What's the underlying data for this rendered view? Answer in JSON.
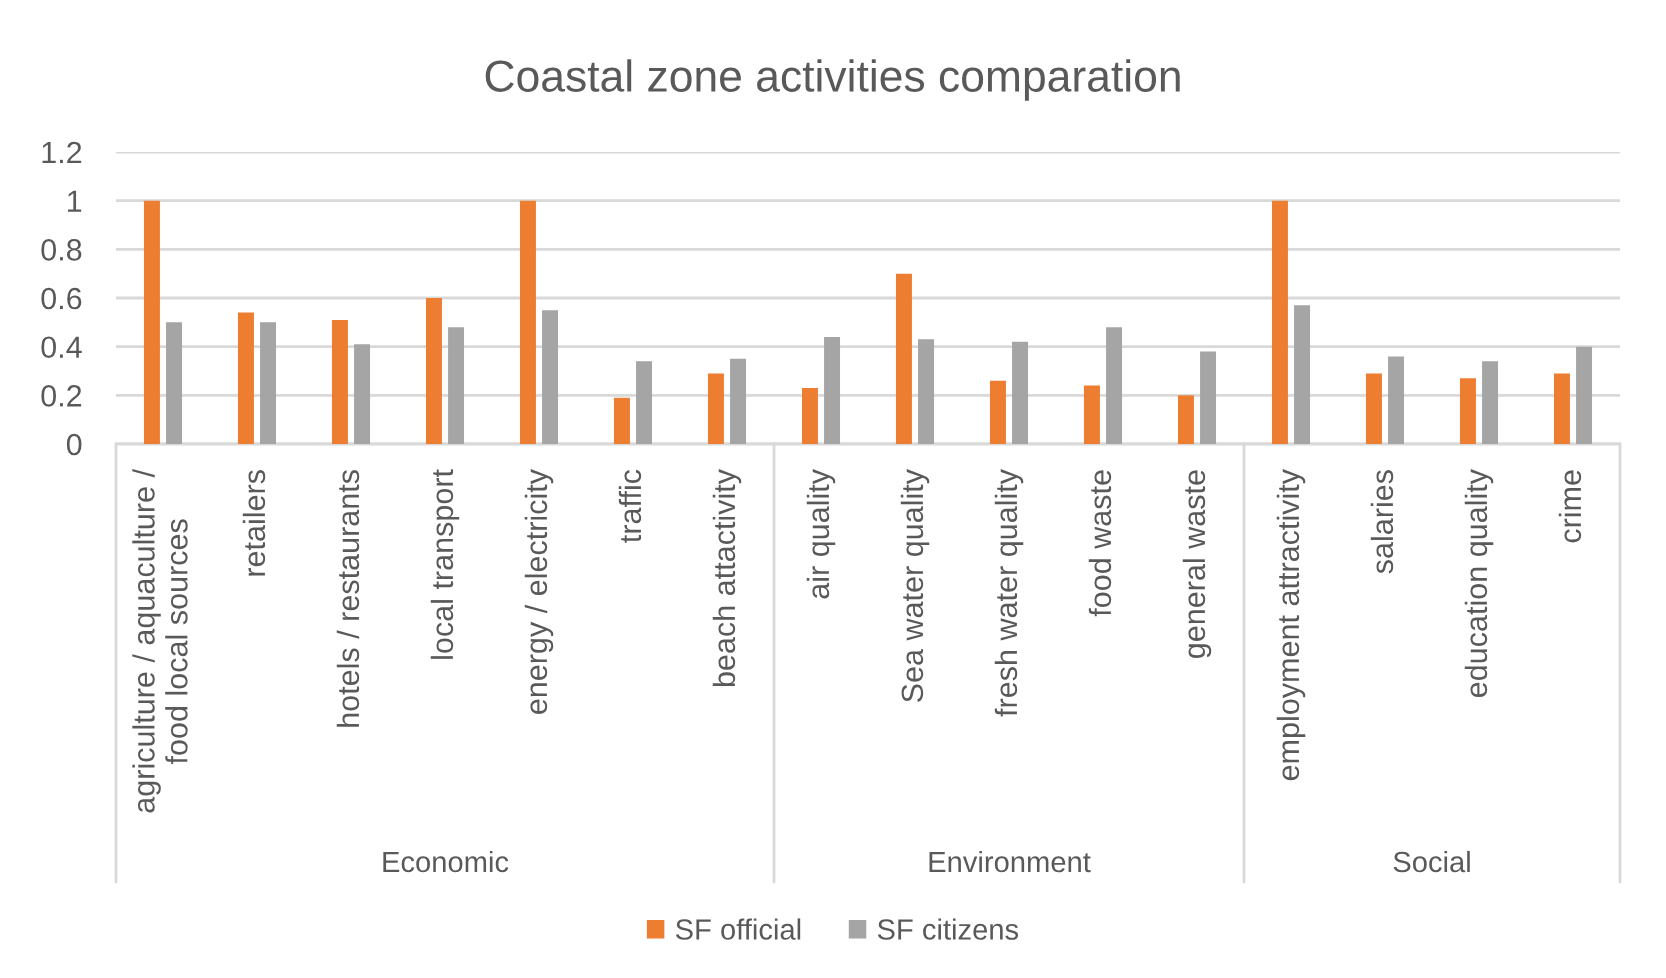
{
  "chart_data": [
    {
      "type": "bar",
      "title": "Coastal zone activities comparation",
      "xlabel": "Economic",
      "categories": [
        "agriculture / aquaculture /\nfood local sources",
        "retailers",
        "hotels / restaurants",
        "local transport",
        "energy / electricity",
        "traffic",
        "beach attactivity"
      ],
      "series": [
        {
          "name": "SF official",
          "color": "#ed7d31",
          "values": [
            1,
            0.54,
            0.51,
            0.6,
            1,
            0.19,
            0.29
          ]
        },
        {
          "name": "SF citizens",
          "color": "#a5a5a5",
          "values": [
            0.5,
            0.5,
            0.41,
            0.48,
            0.55,
            0.34,
            0.35
          ]
        }
      ],
      "ylim": [
        0,
        1.2
      ],
      "yticks": [
        0,
        0.2,
        0.4,
        0.6,
        0.8,
        1,
        1.2
      ],
      "grid": "y",
      "legend": "bottom"
    },
    {
      "type": "bar",
      "xlabel": "Environment",
      "categories": [
        "air quality",
        "Sea water quality",
        "fresh water quality",
        "food waste",
        "general waste"
      ],
      "series": [
        {
          "name": "SF official",
          "color": "#ed7d31",
          "values": [
            0.23,
            0.7,
            0.26,
            0.24,
            0.2
          ]
        },
        {
          "name": "SF citizens",
          "color": "#a5a5a5",
          "values": [
            0.44,
            0.43,
            0.42,
            0.48,
            0.38
          ]
        }
      ],
      "ylim": [
        0,
        1.2
      ],
      "yticks": [
        0,
        0.2,
        0.4,
        0.6,
        0.8,
        1,
        1.2
      ],
      "grid": "y",
      "tick_labels": "x"
    },
    {
      "type": "bar",
      "xlabel": "Social",
      "categories": [
        "employment attractivity",
        "salaries",
        "education quality",
        "crime"
      ],
      "series": [
        {
          "name": "SF official",
          "color": "#ed7d31",
          "values": [
            1,
            0.29,
            0.27,
            0.29
          ]
        },
        {
          "name": "SF citizens",
          "color": "#a5a5a5",
          "values": [
            0.57,
            0.36,
            0.34,
            0.4
          ]
        }
      ],
      "ylim": [
        0,
        1.2
      ],
      "yticks": [
        0,
        0.2,
        0.4,
        0.6,
        0.8,
        1,
        1.2
      ],
      "grid": "y",
      "tick_labels": "x"
    }
  ]
}
